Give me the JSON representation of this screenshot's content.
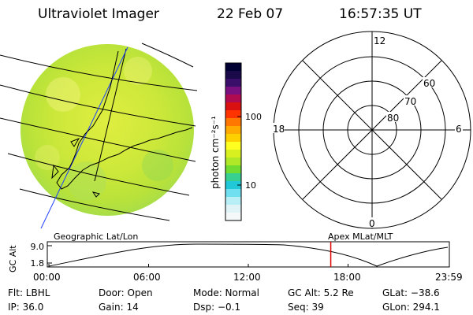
{
  "header": {
    "title": "Ultraviolet Imager",
    "date": "22 Feb 07",
    "time": "16:57:35 UT"
  },
  "colorbar": {
    "label": "photon cm⁻²s⁻¹",
    "ticks": [
      "100",
      "10"
    ],
    "colors": [
      "#000033",
      "#1a0a4a",
      "#3a0f6a",
      "#7a1080",
      "#b00a50",
      "#d81010",
      "#ff3300",
      "#ff7700",
      "#ffaa00",
      "#ffd000",
      "#ffff20",
      "#d8f020",
      "#b0e828",
      "#70dc30",
      "#38d090",
      "#20c8d8",
      "#70e0f0",
      "#b8eef5",
      "#e0f4f8",
      "#f4f8f8"
    ]
  },
  "polar": {
    "labels": [
      "12",
      "60",
      "70",
      "80",
      "18",
      "6",
      "0"
    ]
  },
  "timeline": {
    "left_title": "Geographic Lat/Lon",
    "right_title": "Apex MLat/MLT",
    "ylabel": "GC Alt",
    "yticks": [
      "9.0",
      "1.8"
    ],
    "xticks": [
      "00:00",
      "06:00",
      "12:00",
      "18:00",
      "23:59"
    ],
    "current_time": "16:57:35",
    "marker_color": "#dd0000"
  },
  "info": {
    "flt": "Flt: LBHL",
    "ip": "IP: 36.0",
    "door": "Door: Open",
    "gain": "Gain: 14",
    "mode": "Mode: Normal",
    "dsp": "Dsp:  −0.1",
    "gcalt": "GC Alt: 5.2 Re",
    "seq": "Seq: 39",
    "glat": "GLat: −38.6",
    "glon": "GLon: 294.1"
  }
}
